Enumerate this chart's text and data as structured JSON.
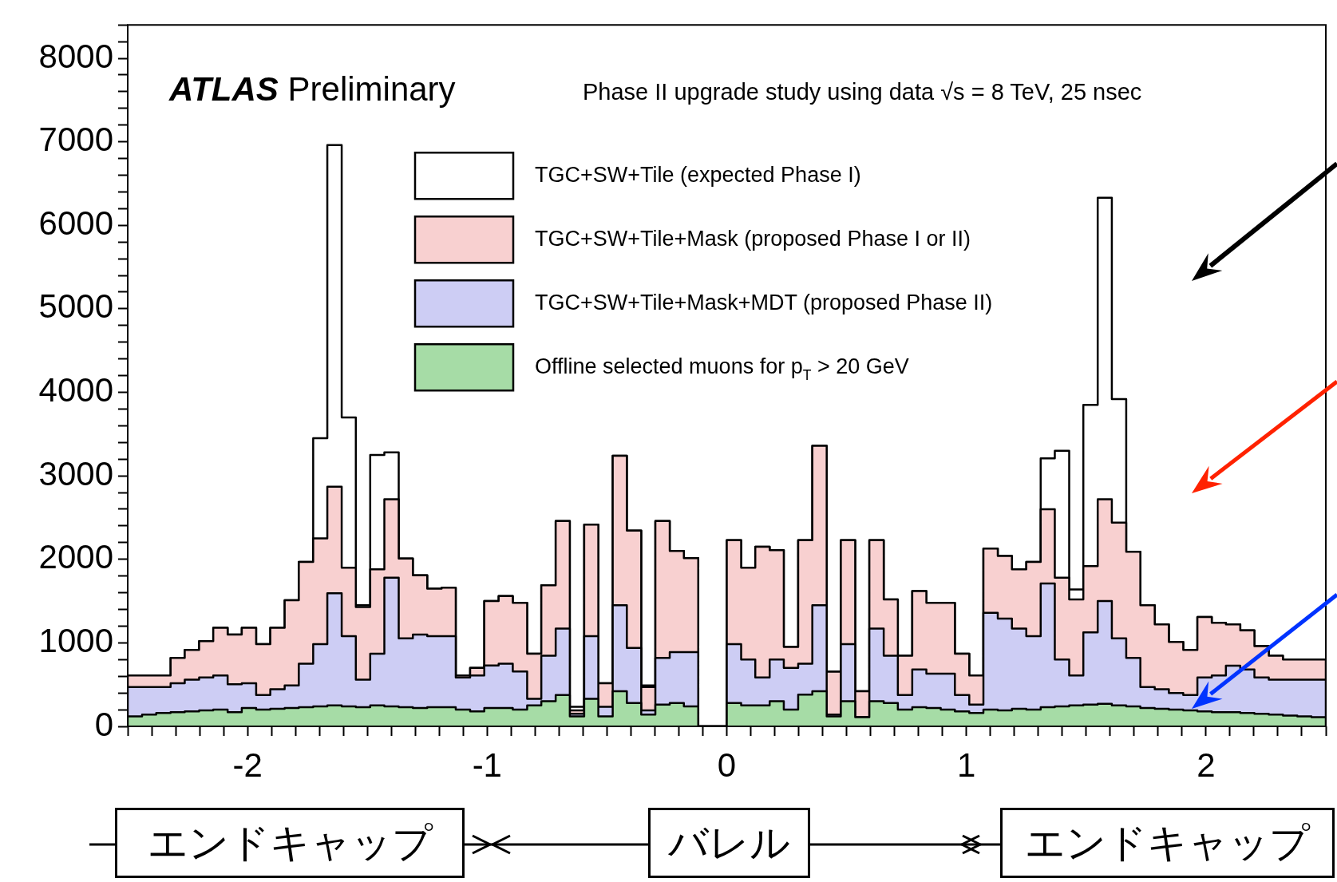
{
  "chart_data": {
    "type": "histogram",
    "title": "ATLAS Preliminary",
    "subtitle": "Phase II upgrade study using data √s = 8 TeV, 25 nsec",
    "annotations": [
      "エンドキャップ",
      "バレル",
      "エンドキャップ"
    ],
    "legend": "top",
    "bins": [
      -2.5,
      -2.44,
      -2.381,
      -2.321,
      -2.262,
      -2.202,
      -2.143,
      -2.083,
      -2.024,
      -1.964,
      -1.905,
      -1.845,
      -1.786,
      -1.726,
      -1.667,
      -1.607,
      -1.548,
      -1.488,
      -1.429,
      -1.369,
      -1.31,
      -1.25,
      -1.19,
      -1.131,
      -1.071,
      -1.012,
      -0.952,
      -0.893,
      -0.833,
      -0.774,
      -0.714,
      -0.655,
      -0.595,
      -0.536,
      -0.476,
      -0.417,
      -0.357,
      -0.298,
      -0.238,
      -0.179,
      -0.119,
      -0.06,
      0,
      0.06,
      0.119,
      0.179,
      0.238,
      0.298,
      0.357,
      0.417,
      0.476,
      0.536,
      0.595,
      0.655,
      0.714,
      0.774,
      0.833,
      0.893,
      0.952,
      1.012,
      1.071,
      1.131,
      1.19,
      1.25,
      1.31,
      1.369,
      1.429,
      1.488,
      1.548,
      1.607,
      1.667,
      1.726,
      1.786,
      1.845,
      1.905,
      1.964,
      2.024,
      2.083,
      2.143,
      2.202,
      2.262,
      2.321,
      2.381,
      2.44,
      2.5
    ],
    "series": [
      {
        "name": "TGC+SW+Tile (expected Phase I)",
        "color": "#ffffff",
        "values": [
          610,
          610,
          610,
          820,
          915,
          1020,
          1180,
          1100,
          1180,
          985,
          1180,
          1510,
          1970,
          3450,
          6960,
          3700,
          1450,
          3250,
          3280,
          2010,
          1810,
          1650,
          1660,
          610,
          700,
          1500,
          1560,
          1480,
          870,
          1690,
          2460,
          235,
          2415,
          515,
          3240,
          2345,
          490,
          2460,
          2100,
          2015,
          0,
          0,
          2230,
          1900,
          2150,
          2110,
          950,
          2230,
          3360,
          655,
          2230,
          420,
          2230,
          1520,
          845,
          1620,
          1480,
          1480,
          870,
          610,
          2130,
          2040,
          1880,
          1970,
          3210,
          3300,
          1640,
          3850,
          6330,
          3920,
          2090,
          1450,
          1220,
          1010,
          915,
          1310,
          1240,
          1220,
          1150,
          960,
          845,
          800,
          800,
          800
        ]
      },
      {
        "name": "TGC+SW+Tile+Mask (proposed Phase I or II)",
        "color": "#f8d0d0",
        "values": [
          610,
          610,
          610,
          820,
          915,
          1020,
          1180,
          1100,
          1180,
          985,
          1180,
          1510,
          1970,
          2250,
          2870,
          1900,
          1430,
          1880,
          2720,
          2010,
          1810,
          1650,
          1660,
          610,
          700,
          1500,
          1560,
          1480,
          870,
          1690,
          2460,
          190,
          2415,
          515,
          3240,
          2345,
          470,
          2460,
          2100,
          2015,
          0,
          0,
          2230,
          1900,
          2150,
          2110,
          950,
          2230,
          3360,
          655,
          2230,
          420,
          2230,
          1520,
          845,
          1620,
          1480,
          1480,
          870,
          610,
          2130,
          2040,
          1880,
          1970,
          2600,
          1780,
          1520,
          1920,
          2720,
          2440,
          2090,
          1450,
          1220,
          1010,
          915,
          1310,
          1240,
          1220,
          1150,
          960,
          845,
          800,
          800,
          800
        ]
      },
      {
        "name": "TGC+SW+Tile+Mask+MDT (proposed Phase II)",
        "color": "#cdcdf4",
        "values": [
          470,
          470,
          470,
          515,
          560,
          586,
          610,
          505,
          515,
          375,
          445,
          490,
          750,
          985,
          1595,
          1080,
          560,
          870,
          1780,
          1055,
          1100,
          1080,
          1080,
          586,
          610,
          730,
          750,
          656,
          330,
          845,
          1170,
          150,
          1080,
          235,
          1450,
          940,
          190,
          820,
          890,
          890,
          0,
          0,
          985,
          800,
          586,
          800,
          700,
          750,
          1450,
          140,
          985,
          110,
          1170,
          845,
          375,
          680,
          630,
          630,
          375,
          260,
          1360,
          1290,
          1170,
          1080,
          1710,
          800,
          610,
          1125,
          1500,
          1055,
          820,
          470,
          445,
          400,
          375,
          586,
          610,
          727,
          680,
          586,
          560,
          560,
          560,
          560
        ]
      },
      {
        "name": "Offline selected muons for p$_{T}$ > 20 GeV",
        "color": "#a6dca6",
        "values": [
          120,
          140,
          160,
          170,
          180,
          190,
          200,
          170,
          220,
          200,
          210,
          220,
          230,
          240,
          250,
          240,
          230,
          250,
          240,
          230,
          220,
          230,
          230,
          200,
          180,
          220,
          220,
          200,
          250,
          300,
          375,
          120,
          330,
          120,
          420,
          280,
          140,
          260,
          280,
          240,
          0,
          0,
          280,
          250,
          250,
          300,
          200,
          380,
          420,
          120,
          300,
          110,
          300,
          280,
          200,
          230,
          220,
          200,
          180,
          160,
          200,
          190,
          210,
          200,
          230,
          240,
          250,
          260,
          270,
          250,
          240,
          220,
          210,
          200,
          190,
          180,
          170,
          170,
          160,
          150,
          140,
          130,
          120,
          110
        ]
      }
    ],
    "xlim": [
      -2.5,
      2.5
    ],
    "xticks": [
      {
        "value": -2.5,
        "label": null
      },
      {
        "value": -2.4,
        "label": null
      },
      {
        "value": -2.3,
        "label": null
      },
      {
        "value": -2.2,
        "label": null
      },
      {
        "value": -2.1,
        "label": null
      },
      -2,
      {
        "value": -1.9,
        "label": null
      },
      {
        "value": -1.8,
        "label": null
      },
      {
        "value": -1.7,
        "label": null
      },
      {
        "value": -1.6,
        "label": null
      },
      {
        "value": -1.5,
        "label": null
      },
      {
        "value": -1.4,
        "label": null
      },
      {
        "value": -1.3,
        "label": null
      },
      {
        "value": -1.2,
        "label": null
      },
      {
        "value": -1.1,
        "label": null
      },
      -1,
      {
        "value": -0.9,
        "label": null
      },
      {
        "value": -0.8,
        "label": null
      },
      {
        "value": -0.7,
        "label": null
      },
      {
        "value": -0.6,
        "label": null
      },
      {
        "value": -0.5,
        "label": null
      },
      {
        "value": -0.4,
        "label": null
      },
      {
        "value": -0.3,
        "label": null
      },
      {
        "value": -0.2,
        "label": null
      },
      {
        "value": -0.1,
        "label": null
      },
      0,
      {
        "value": 0.1,
        "label": null
      },
      {
        "value": 0.2,
        "label": null
      },
      {
        "value": 0.3,
        "label": null
      },
      {
        "value": 0.4,
        "label": null
      },
      {
        "value": 0.5,
        "label": null
      },
      {
        "value": 0.6,
        "label": null
      },
      {
        "value": 0.7,
        "label": null
      },
      {
        "value": 0.8,
        "label": null
      },
      {
        "value": 0.9,
        "label": null
      },
      1,
      {
        "value": 1.1,
        "label": null
      },
      {
        "value": 1.2,
        "label": null
      },
      {
        "value": 1.3,
        "label": null
      },
      {
        "value": 1.4,
        "label": null
      },
      {
        "value": 1.5,
        "label": null
      },
      {
        "value": 1.6,
        "label": null
      },
      {
        "value": 1.7,
        "label": null
      },
      {
        "value": 1.8,
        "label": null
      },
      {
        "value": 1.9,
        "label": null
      },
      2,
      {
        "value": 2.1,
        "label": null
      },
      {
        "value": 2.2,
        "label": null
      },
      {
        "value": 2.3,
        "label": null
      },
      {
        "value": 2.4,
        "label": null
      },
      {
        "value": 2.5,
        "label": null
      }
    ],
    "ylim": [
      0,
      8400
    ],
    "yticks": [
      0,
      {
        "value": 200,
        "label": null
      },
      {
        "value": 400,
        "label": null
      },
      {
        "value": 600,
        "label": null
      },
      {
        "value": 800,
        "label": null
      },
      1000,
      {
        "value": 1200,
        "label": null
      },
      {
        "value": 1400,
        "label": null
      },
      {
        "value": 1600,
        "label": null
      },
      {
        "value": 1800,
        "label": null
      },
      2000,
      {
        "value": 2200,
        "label": null
      },
      {
        "value": 2400,
        "label": null
      },
      {
        "value": 2600,
        "label": null
      },
      {
        "value": 2800,
        "label": null
      },
      3000,
      {
        "value": 3200,
        "label": null
      },
      {
        "value": 3400,
        "label": null
      },
      {
        "value": 3600,
        "label": null
      },
      {
        "value": 3800,
        "label": null
      },
      4000,
      {
        "value": 4200,
        "label": null
      },
      {
        "value": 4400,
        "label": null
      },
      {
        "value": 4600,
        "label": null
      },
      {
        "value": 4800,
        "label": null
      },
      5000,
      {
        "value": 5200,
        "label": null
      },
      {
        "value": 5400,
        "label": null
      },
      {
        "value": 5600,
        "label": null
      },
      {
        "value": 5800,
        "label": null
      },
      6000,
      {
        "value": 6200,
        "label": null
      },
      {
        "value": 6400,
        "label": null
      },
      {
        "value": 6600,
        "label": null
      },
      {
        "value": 6800,
        "label": null
      },
      7000,
      {
        "value": 7200,
        "label": null
      },
      {
        "value": 7400,
        "label": null
      },
      {
        "value": 7600,
        "label": null
      },
      {
        "value": 7800,
        "label": null
      },
      8000,
      {
        "value": 8200,
        "label": null
      },
      {
        "value": 8400,
        "label": null
      }
    ]
  }
}
